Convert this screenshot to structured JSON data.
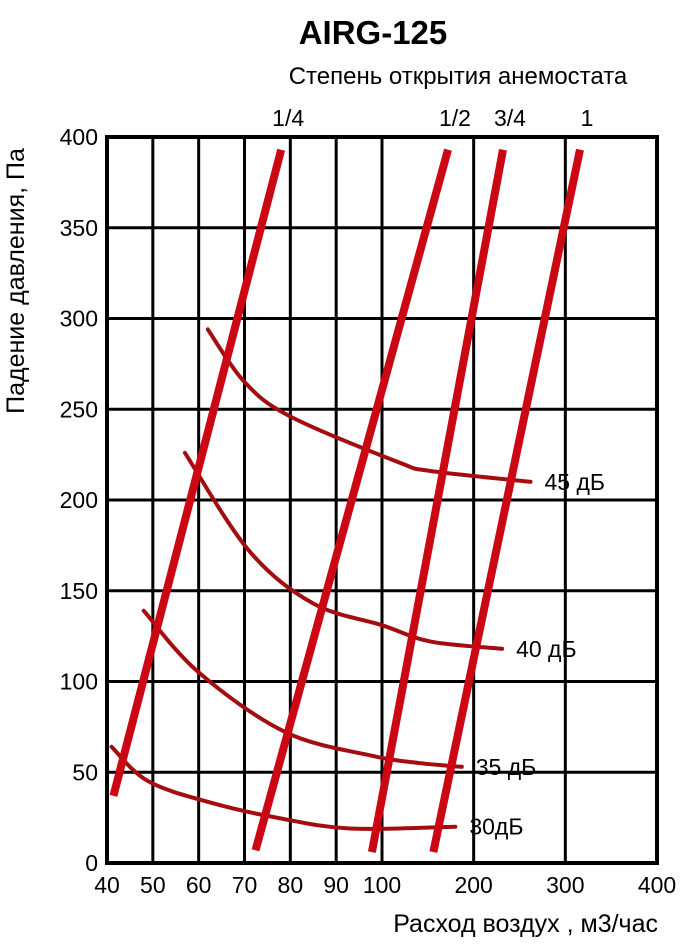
{
  "header": {
    "title": "AIRG-125"
  },
  "top_axis": {
    "title": "Степень открытия анемостата"
  },
  "axes": {
    "y": {
      "title": "Падение давления, Па",
      "min": 0,
      "max": 400,
      "ticks": [
        0,
        50,
        100,
        150,
        200,
        250,
        300,
        350,
        400
      ]
    },
    "x": {
      "title": "Расход воздух , м3/час",
      "min": 40,
      "max": 400,
      "ticks": [
        40,
        50,
        60,
        70,
        80,
        90,
        100,
        200,
        300,
        400
      ],
      "scale": "piecewise-linear: equal tick spacing 40-100 (6 steps over left half) and 100-400 (3 steps over right half)"
    }
  },
  "colors": {
    "opening_line": "#cc0714",
    "noise_curve": "#a40d10",
    "grid": "#000000",
    "background": "#ffffff"
  },
  "chart_data": {
    "type": "line",
    "title": "AIRG-125",
    "xlabel": "Расход воздух , м3/час",
    "ylabel": "Падение давления, Па",
    "xlim": [
      40,
      400
    ],
    "ylim": [
      0,
      400
    ],
    "grid": true,
    "opening_series": [
      {
        "name": "1/4",
        "points": [
          [
            41.4,
            37
          ],
          [
            78,
            393
          ]
        ]
      },
      {
        "name": "1/2",
        "points": [
          [
            72.4,
            7
          ],
          [
            172,
            393
          ]
        ]
      },
      {
        "name": "3/4",
        "points": [
          [
            97.8,
            6
          ],
          [
            232,
            393
          ]
        ]
      },
      {
        "name": "1",
        "points": [
          [
            156,
            6
          ],
          [
            316,
            393
          ]
        ]
      }
    ],
    "noise_series": [
      {
        "name": "45 дБ",
        "points": [
          [
            62,
            294
          ],
          [
            70,
            265
          ],
          [
            80,
            246
          ],
          [
            117,
            221
          ],
          [
            153,
            216
          ],
          [
            262,
            210
          ]
        ]
      },
      {
        "name": "40 дБ",
        "points": [
          [
            57,
            226
          ],
          [
            71,
            172
          ],
          [
            85,
            143
          ],
          [
            100,
            131
          ],
          [
            153,
            122
          ],
          [
            231,
            118
          ]
        ]
      },
      {
        "name": "35 дБ",
        "points": [
          [
            48,
            139
          ],
          [
            60,
            105
          ],
          [
            79,
            72
          ],
          [
            98,
            59
          ],
          [
            142,
            55
          ],
          [
            187,
            53
          ]
        ]
      },
      {
        "name": "30дБ",
        "points": [
          [
            41,
            64
          ],
          [
            49,
            45
          ],
          [
            63,
            33
          ],
          [
            77,
            25
          ],
          [
            93,
            19
          ],
          [
            180,
            20
          ]
        ]
      }
    ]
  }
}
